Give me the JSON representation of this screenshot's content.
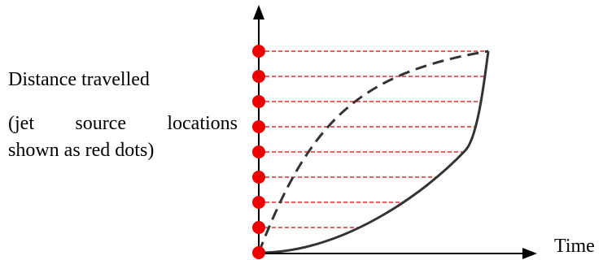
{
  "axes": {
    "y_label": "Distance travelled",
    "y_note_line1": "(jet source locations",
    "y_note_line2": "shown as red dots)",
    "x_label": "Time"
  },
  "colors": {
    "axis": "#000000",
    "curve": "#333333",
    "dot": "#ee0000",
    "guide": "#dd0000"
  },
  "jet_sources": {
    "count": 9,
    "equal_distance_steps": true
  },
  "curves": {
    "solid": "accelerating (slow start, fast finish)",
    "dashed": "decelerating (fast start, slow finish)"
  }
}
